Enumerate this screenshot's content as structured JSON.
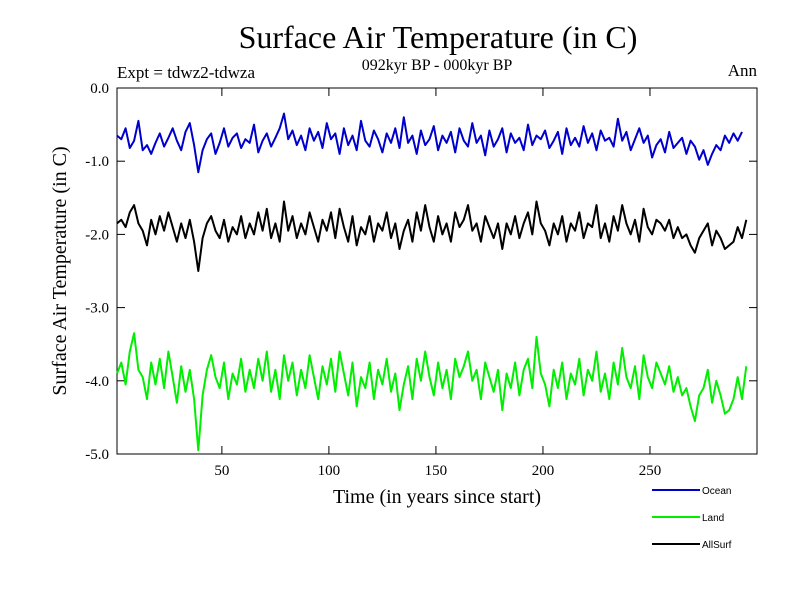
{
  "chart_data": {
    "type": "line",
    "title": "Surface Air Temperature (in C)",
    "subtitle": "092kyr BP - 000kyr BP",
    "expt_label": "Expt = tdwz2-tdwza",
    "season_label": "Ann",
    "xlabel": "Time (in years since start)",
    "ylabel": "Surface Air Temperature (in C)",
    "xlim": [
      1,
      300
    ],
    "ylim": [
      -5.0,
      0.0
    ],
    "x_ticks": [
      50,
      100,
      150,
      200,
      250
    ],
    "y_ticks": [
      "0.0",
      "-1.0",
      "-2.0",
      "-3.0",
      "-4.0",
      "-5.0"
    ],
    "grid": false,
    "legend_position": "bottom-right",
    "x_step": 2,
    "series": [
      {
        "name": "Ocean",
        "color": "#0000cc",
        "values": [
          -0.65,
          -0.7,
          -0.55,
          -0.82,
          -0.72,
          -0.45,
          -0.85,
          -0.78,
          -0.9,
          -0.75,
          -0.62,
          -0.8,
          -0.68,
          -0.55,
          -0.72,
          -0.85,
          -0.6,
          -0.48,
          -0.78,
          -1.15,
          -0.85,
          -0.7,
          -0.62,
          -0.9,
          -0.75,
          -0.55,
          -0.8,
          -0.68,
          -0.62,
          -0.82,
          -0.7,
          -0.75,
          -0.5,
          -0.88,
          -0.72,
          -0.62,
          -0.8,
          -0.68,
          -0.55,
          -0.35,
          -0.7,
          -0.58,
          -0.78,
          -0.65,
          -0.85,
          -0.55,
          -0.72,
          -0.6,
          -0.82,
          -0.48,
          -0.7,
          -0.62,
          -0.9,
          -0.55,
          -0.78,
          -0.65,
          -0.85,
          -0.45,
          -0.72,
          -0.8,
          -0.58,
          -0.7,
          -0.88,
          -0.62,
          -0.75,
          -0.55,
          -0.82,
          -0.4,
          -0.75,
          -0.65,
          -0.9,
          -0.58,
          -0.78,
          -0.7,
          -0.52,
          -0.85,
          -0.65,
          -0.75,
          -0.6,
          -0.88,
          -0.55,
          -0.72,
          -0.8,
          -0.48,
          -0.75,
          -0.65,
          -0.92,
          -0.58,
          -0.8,
          -0.7,
          -0.55,
          -0.88,
          -0.62,
          -0.75,
          -0.68,
          -0.85,
          -0.5,
          -0.78,
          -0.65,
          -0.7,
          -0.58,
          -0.82,
          -0.72,
          -0.6,
          -0.9,
          -0.55,
          -0.78,
          -0.68,
          -0.8,
          -0.52,
          -0.75,
          -0.62,
          -0.85,
          -0.58,
          -0.72,
          -0.68,
          -0.8,
          -0.42,
          -0.72,
          -0.6,
          -0.85,
          -0.7,
          -0.55,
          -0.75,
          -0.65,
          -0.95,
          -0.78,
          -0.7,
          -0.88,
          -0.6,
          -0.82,
          -0.75,
          -0.68,
          -0.9,
          -0.72,
          -0.8,
          -0.98,
          -0.85,
          -1.05,
          -0.9,
          -0.78,
          -0.85,
          -0.65,
          -0.75,
          -0.62,
          -0.72,
          -0.6
        ]
      },
      {
        "name": "Land",
        "color": "#00ee00",
        "values": [
          -3.9,
          -3.75,
          -4.05,
          -3.6,
          -3.35,
          -3.85,
          -3.95,
          -4.25,
          -3.75,
          -4.05,
          -3.7,
          -4.1,
          -3.6,
          -3.95,
          -4.3,
          -3.8,
          -4.15,
          -3.85,
          -4.25,
          -4.95,
          -4.2,
          -3.85,
          -3.65,
          -3.95,
          -4.1,
          -3.75,
          -4.25,
          -3.9,
          -4.05,
          -3.7,
          -4.15,
          -3.85,
          -4.1,
          -3.7,
          -4.0,
          -3.6,
          -4.15,
          -3.85,
          -4.25,
          -3.65,
          -4.0,
          -3.75,
          -4.2,
          -3.85,
          -4.1,
          -3.65,
          -3.95,
          -4.25,
          -3.8,
          -4.05,
          -3.7,
          -4.15,
          -3.6,
          -3.9,
          -4.2,
          -3.75,
          -4.35,
          -3.95,
          -4.1,
          -3.75,
          -4.25,
          -3.85,
          -4.05,
          -3.7,
          -4.15,
          -3.9,
          -4.4,
          -4.05,
          -3.8,
          -4.25,
          -3.7,
          -4.0,
          -3.6,
          -3.95,
          -4.2,
          -3.75,
          -4.1,
          -3.85,
          -4.25,
          -3.7,
          -3.95,
          -3.8,
          -3.6,
          -4.0,
          -3.85,
          -4.25,
          -3.75,
          -3.95,
          -4.15,
          -3.85,
          -4.4,
          -3.9,
          -4.1,
          -3.75,
          -4.2,
          -3.85,
          -3.7,
          -4.1,
          -3.4,
          -3.9,
          -4.05,
          -4.35,
          -3.85,
          -4.1,
          -3.75,
          -4.25,
          -3.9,
          -4.05,
          -3.7,
          -4.2,
          -3.85,
          -4.0,
          -3.6,
          -4.15,
          -3.9,
          -4.25,
          -3.75,
          -4.05,
          -3.55,
          -3.95,
          -4.1,
          -3.8,
          -4.25,
          -3.65,
          -3.95,
          -4.1,
          -3.75,
          -3.9,
          -4.05,
          -3.8,
          -4.15,
          -3.95,
          -4.2,
          -4.1,
          -4.35,
          -4.55,
          -4.2,
          -4.1,
          -3.85,
          -4.3,
          -4.0,
          -4.2,
          -4.45,
          -4.4,
          -4.25,
          -3.95,
          -4.25,
          -3.8
        ]
      },
      {
        "name": "AllSurf",
        "color": "#000000",
        "values": [
          -1.85,
          -1.8,
          -1.9,
          -1.7,
          -1.6,
          -1.85,
          -1.95,
          -2.15,
          -1.8,
          -2.0,
          -1.75,
          -1.95,
          -1.7,
          -1.9,
          -2.1,
          -1.85,
          -2.05,
          -1.8,
          -2.1,
          -2.5,
          -2.05,
          -1.85,
          -1.75,
          -1.95,
          -2.05,
          -1.8,
          -2.1,
          -1.9,
          -2.0,
          -1.75,
          -2.05,
          -1.85,
          -2.0,
          -1.7,
          -1.95,
          -1.65,
          -2.05,
          -1.85,
          -2.1,
          -1.55,
          -1.95,
          -1.75,
          -2.05,
          -1.85,
          -2.0,
          -1.7,
          -1.9,
          -2.1,
          -1.8,
          -1.95,
          -1.7,
          -2.05,
          -1.65,
          -1.9,
          -2.1,
          -1.75,
          -2.15,
          -1.9,
          -2.0,
          -1.75,
          -2.1,
          -1.85,
          -1.95,
          -1.7,
          -2.05,
          -1.85,
          -2.2,
          -1.95,
          -1.8,
          -2.1,
          -1.7,
          -1.95,
          -1.6,
          -1.9,
          -2.1,
          -1.75,
          -2.0,
          -1.85,
          -2.1,
          -1.7,
          -1.9,
          -1.8,
          -1.6,
          -1.95,
          -1.85,
          -2.1,
          -1.75,
          -1.9,
          -2.05,
          -1.85,
          -2.2,
          -1.85,
          -2.0,
          -1.75,
          -2.05,
          -1.85,
          -1.7,
          -2.0,
          -1.55,
          -1.85,
          -1.95,
          -2.15,
          -1.85,
          -2.0,
          -1.75,
          -2.1,
          -1.85,
          -1.95,
          -1.7,
          -2.05,
          -1.85,
          -1.9,
          -1.6,
          -2.05,
          -1.85,
          -2.1,
          -1.75,
          -1.95,
          -1.6,
          -1.85,
          -2.0,
          -1.8,
          -2.1,
          -1.65,
          -1.9,
          -2.0,
          -1.8,
          -1.85,
          -1.95,
          -1.8,
          -2.05,
          -1.9,
          -2.05,
          -2.0,
          -2.15,
          -2.25,
          -2.05,
          -1.95,
          -1.85,
          -2.15,
          -1.95,
          -2.05,
          -2.2,
          -2.15,
          -2.1,
          -1.9,
          -2.05,
          -1.8
        ]
      }
    ]
  }
}
